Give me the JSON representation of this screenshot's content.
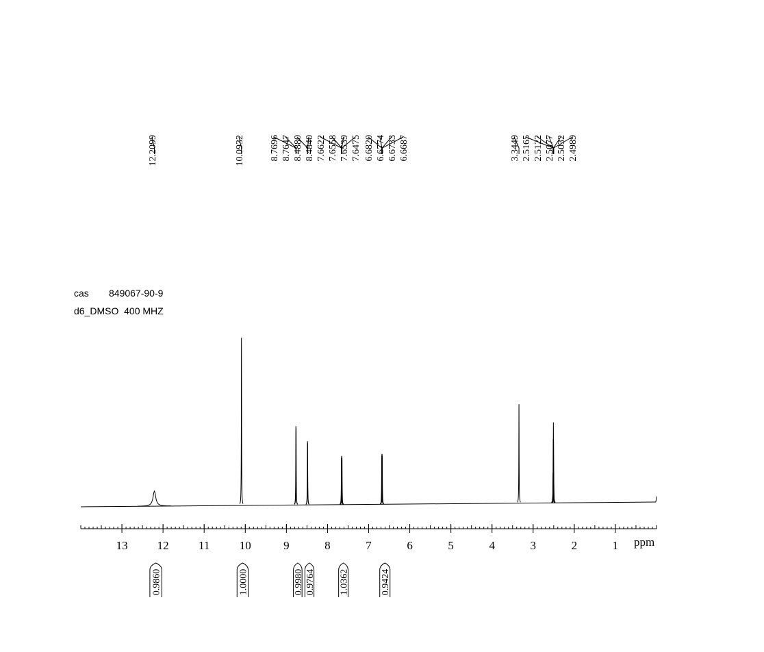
{
  "chart_data": {
    "type": "nmr",
    "sample": {
      "cas_label": "cas",
      "cas": "849067-90-9",
      "conditions": "d6_DMSO  400 MHZ"
    },
    "x_label": "ppm",
    "xlim": [
      14,
      0
    ],
    "xticks": [
      13,
      12,
      11,
      10,
      9,
      8,
      7,
      6,
      5,
      4,
      3,
      2,
      1
    ],
    "ylim": [
      0,
      100
    ],
    "peaks": {
      "x": [
        12.2099,
        10.0932,
        8.7696,
        8.7647,
        {
          "value": 8.488,
          "label": "8.4880"
        },
        {
          "value": 8.484,
          "label": "8.4840"
        },
        7.6622,
        7.6558,
        7.6539,
        7.6475,
        {
          "value": 6.682,
          "label": "6.6820"
        },
        6.6774,
        6.6733,
        6.6687,
        3.3449,
        2.5165,
        2.5122,
        2.5077,
        2.5032,
        2.4989
      ],
      "heights": [
        9,
        100,
        47,
        46,
        38,
        37,
        28,
        29,
        29,
        28,
        29,
        30,
        30,
        29,
        59,
        18,
        38,
        48,
        38,
        18
      ]
    },
    "integrals": {
      "values": [
        0.986,
        1,
        0.998,
        0.9764,
        1.0362,
        0.9424
      ],
      "value_labels": [
        "0.9860",
        "1.0000",
        "0.9980",
        "0.9764",
        "1.0362",
        "0.9424"
      ],
      "ranges": [
        [
          12.32,
          12.03
        ],
        [
          10.2,
          9.93
        ],
        [
          8.83,
          8.62
        ],
        [
          8.55,
          8.33
        ],
        [
          7.73,
          7.5
        ],
        [
          6.73,
          6.48
        ]
      ]
    }
  }
}
